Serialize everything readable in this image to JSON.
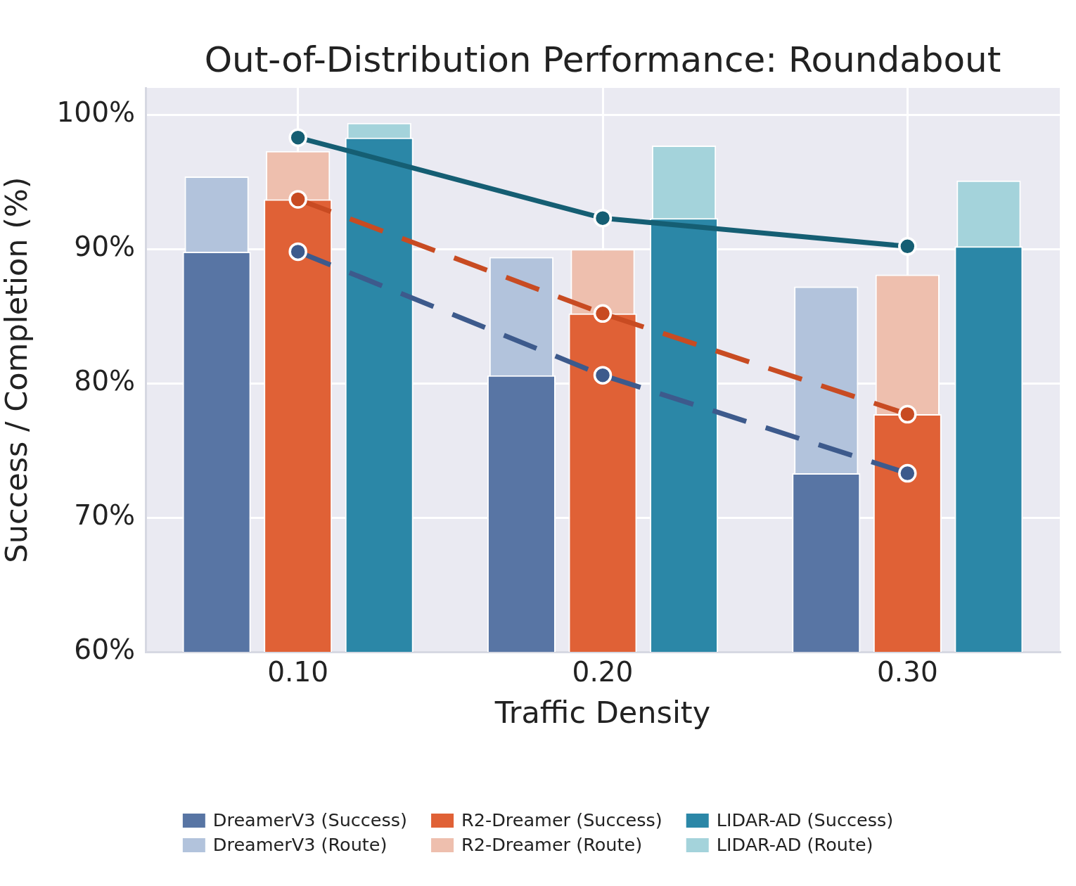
{
  "chart_data": {
    "type": "bar",
    "title": "Out-of-Distribution Performance: Roundabout",
    "xlabel": "Traffic Density",
    "ylabel": "Success / Completion (%)",
    "categories": [
      "0.10",
      "0.20",
      "0.30"
    ],
    "ylim": [
      60,
      102
    ],
    "yticks": [
      {
        "value": 60,
        "label": "60%"
      },
      {
        "value": 70,
        "label": "70%"
      },
      {
        "value": 80,
        "label": "80%"
      },
      {
        "value": 90,
        "label": "90%"
      },
      {
        "value": 100,
        "label": "100%"
      }
    ],
    "grid": true,
    "legend": "bottom",
    "marker": "circle",
    "series": [
      {
        "name": "DreamerV3 (Success)",
        "color": "#5875a4",
        "values": [
          89.8,
          80.6,
          73.3
        ]
      },
      {
        "name": "DreamerV3 (Route)",
        "color": "#b2c3dc",
        "values": [
          95.4,
          89.4,
          87.2
        ]
      },
      {
        "name": "R2-Dreamer (Success)",
        "color": "#e06136",
        "values": [
          93.7,
          85.2,
          77.7
        ]
      },
      {
        "name": "R2-Dreamer (Route)",
        "color": "#eebfae",
        "values": [
          97.3,
          90.0,
          88.1
        ]
      },
      {
        "name": "LIDAR-AD (Success)",
        "color": "#2b87a7",
        "values": [
          98.3,
          92.3,
          90.2
        ]
      },
      {
        "name": "LIDAR-AD (Route)",
        "color": "#a4d3db",
        "values": [
          99.4,
          97.7,
          95.1
        ]
      },
      {
        "type": "line",
        "color": "#3d5a8c",
        "line_style": "dashed",
        "values": [
          89.8,
          80.6,
          73.3
        ]
      },
      {
        "type": "line",
        "color": "#c84b22",
        "line_style": "dashed",
        "values": [
          93.7,
          85.2,
          77.7
        ]
      },
      {
        "type": "line",
        "color": "#155e73",
        "line_style": "solid",
        "values": [
          98.3,
          92.3,
          90.2
        ]
      }
    ]
  }
}
